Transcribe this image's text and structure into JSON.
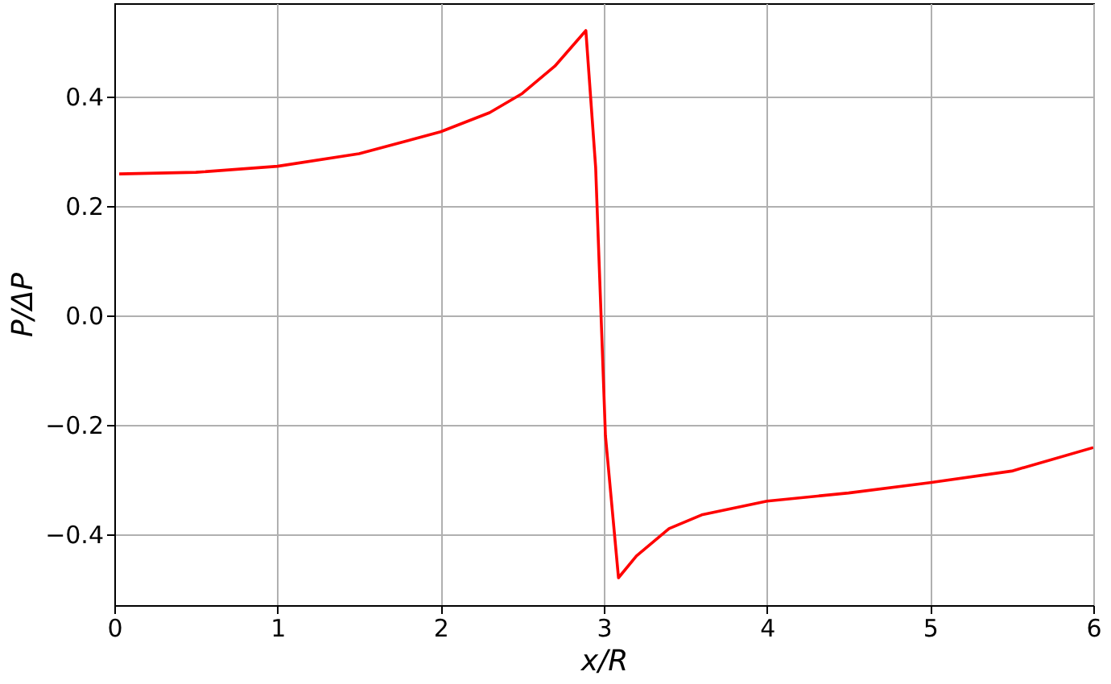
{
  "chart_data": {
    "type": "line",
    "xlabel": "x/R",
    "ylabel": "P/ΔP",
    "x": [
      0.03,
      0.5,
      1,
      1.5,
      2,
      2.3,
      2.5,
      2.7,
      2.89,
      2.95,
      3.01,
      3.09,
      3.2,
      3.4,
      3.6,
      4,
      4.5,
      5,
      5.5,
      6
    ],
    "series": [
      {
        "color": "#ff0000",
        "values": [
          0.258,
          0.261,
          0.272,
          0.295,
          0.335,
          0.37,
          0.405,
          0.455,
          0.52,
          0.27,
          -0.22,
          -0.48,
          -0.44,
          -0.39,
          -0.365,
          -0.34,
          -0.325,
          -0.306,
          -0.285,
          -0.242
        ]
      }
    ],
    "xlim": [
      0,
      6
    ],
    "ylim": [
      -0.53,
      0.57
    ],
    "xticks": [
      0,
      1,
      2,
      3,
      4,
      5,
      6
    ],
    "yticks": [
      {
        "value": -0.4,
        "label": "−0.4"
      },
      {
        "value": -0.2,
        "label": "−0.2"
      },
      {
        "value": 0,
        "label": "0.0"
      },
      {
        "value": 0.2,
        "label": "0.2"
      },
      {
        "value": 0.4,
        "label": "0.4"
      }
    ],
    "grid": true,
    "marker": "none",
    "line_style": "solid"
  }
}
